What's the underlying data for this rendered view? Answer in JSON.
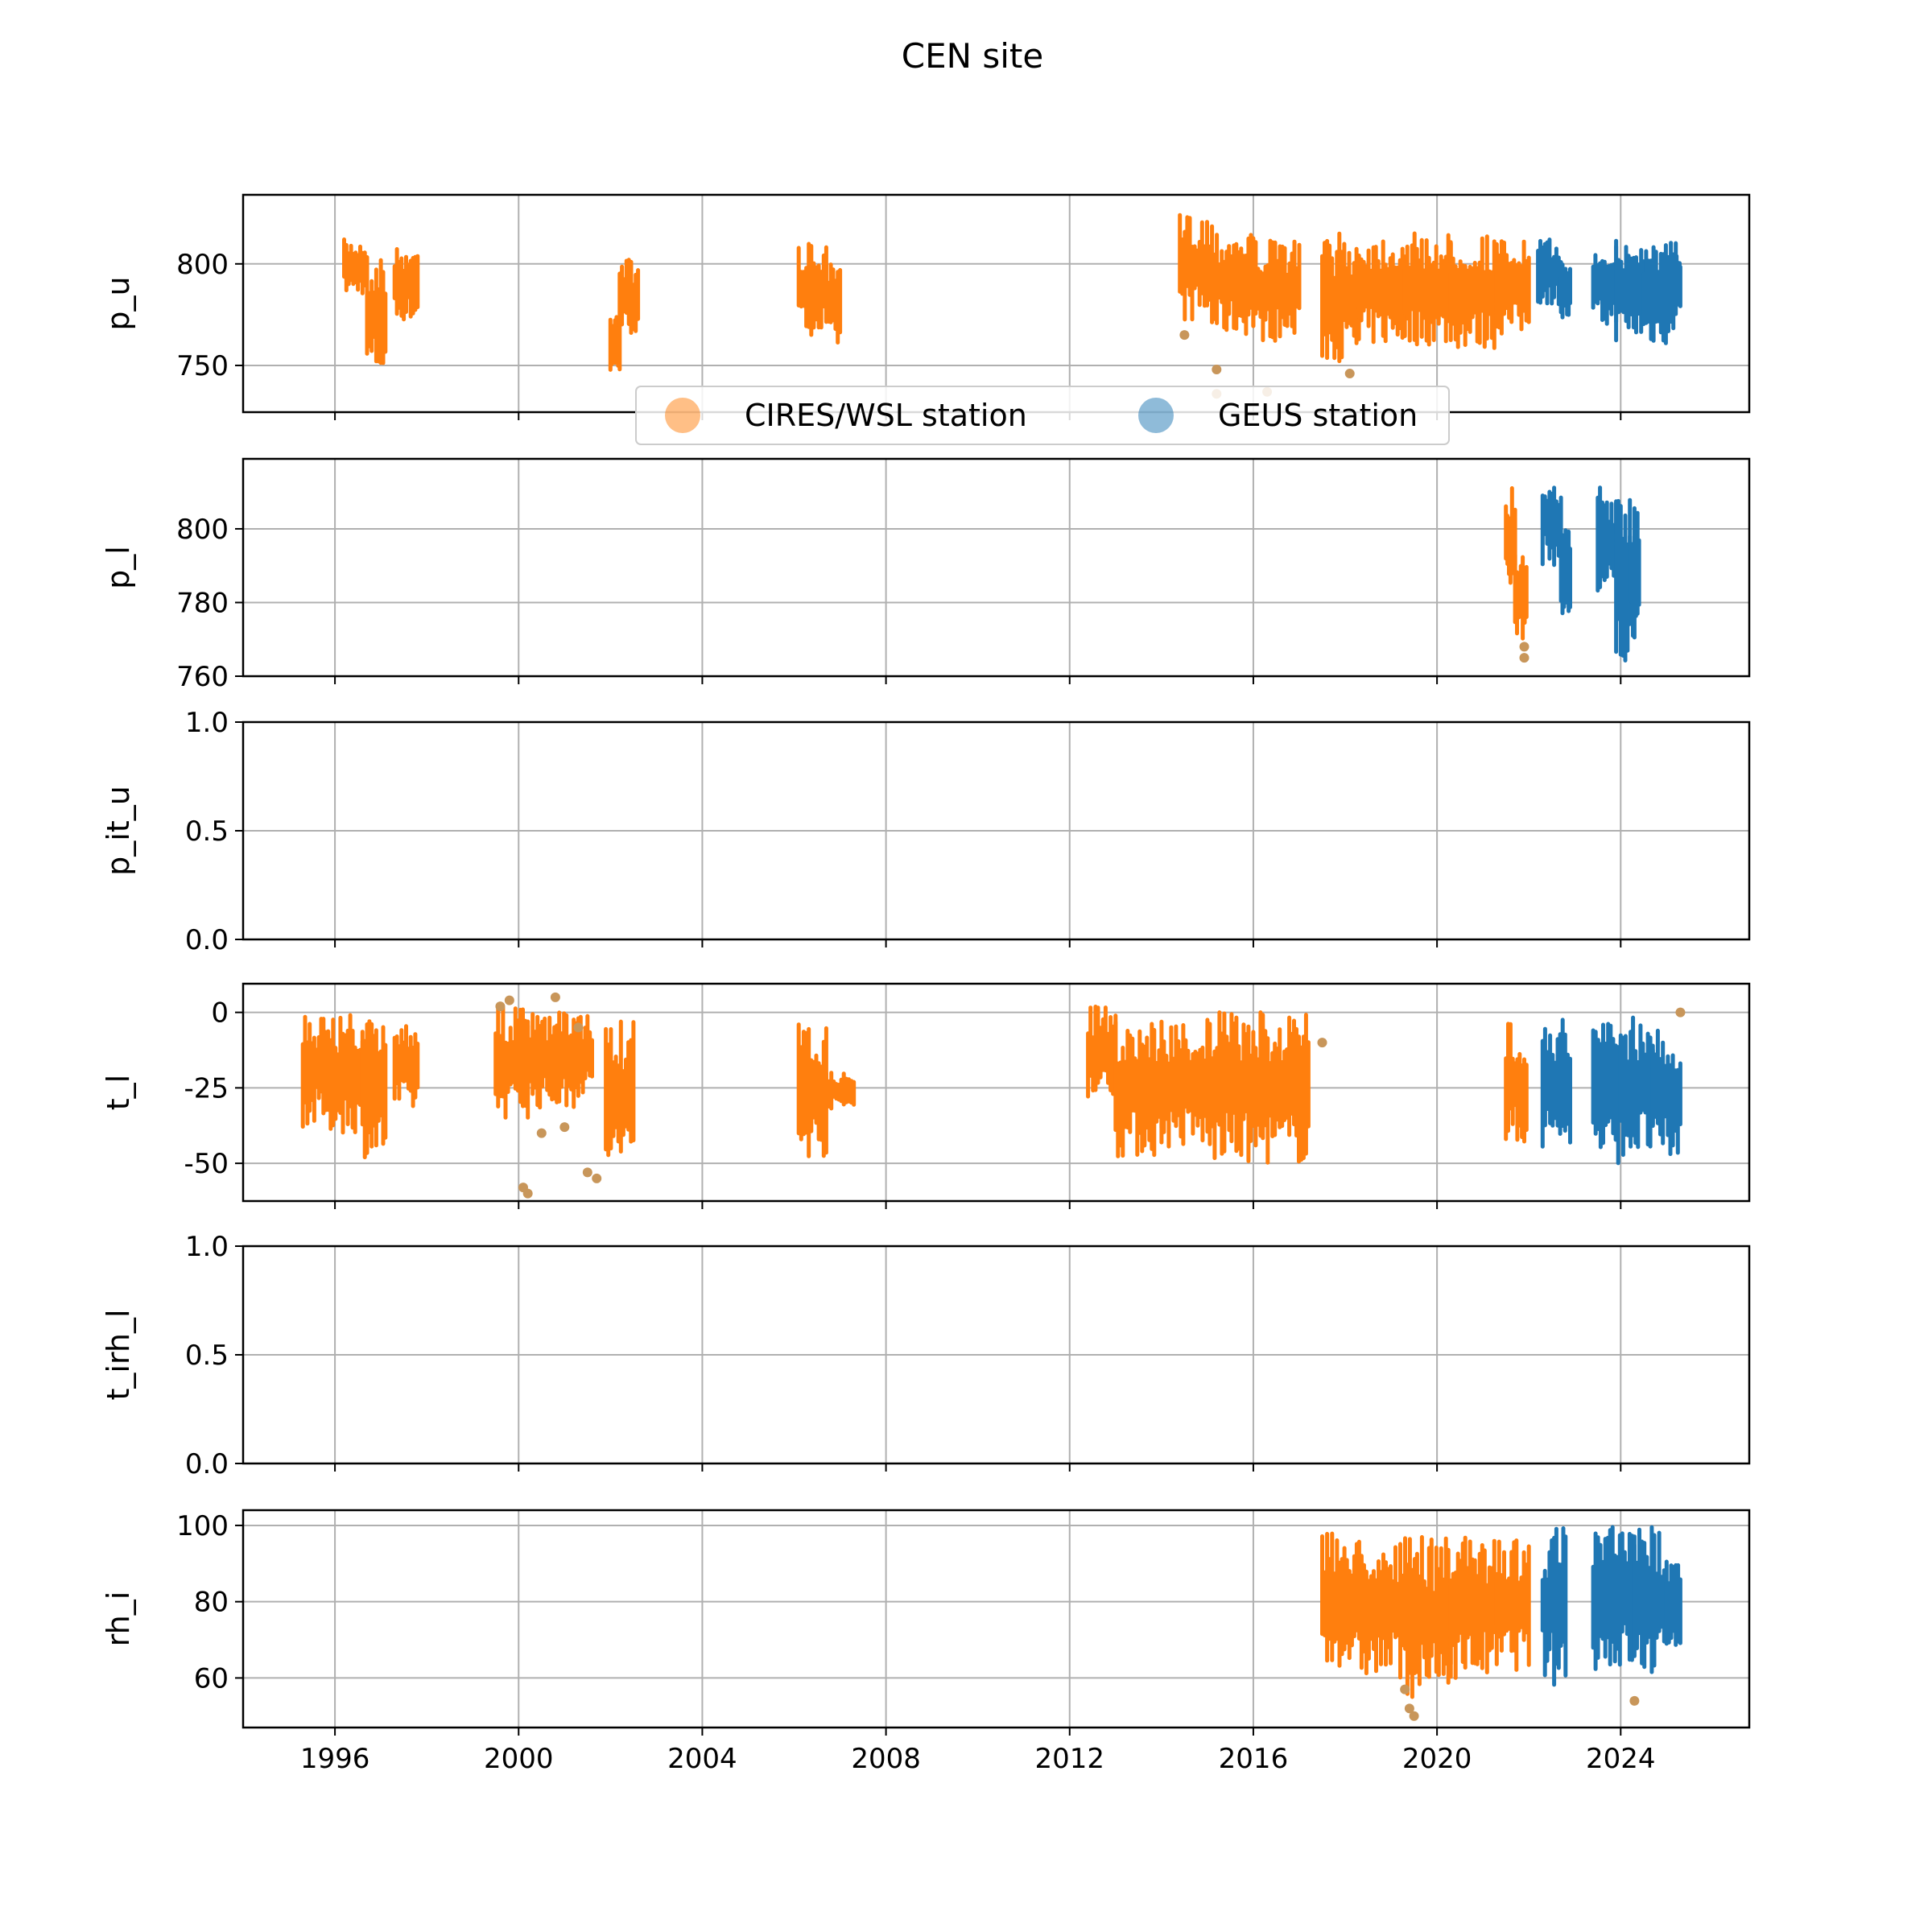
{
  "chart_data": {
    "type": "scatter",
    "title": "CEN site",
    "x_unit": "year",
    "xlim": [
      1994,
      2026.8
    ],
    "x_ticks": [
      1996,
      2000,
      2004,
      2008,
      2012,
      2016,
      2020,
      2024
    ],
    "x_tick_labels": [
      "1996",
      "2000",
      "2004",
      "2008",
      "2012",
      "2016",
      "2020",
      "2024"
    ],
    "grid": true,
    "legend": {
      "placement": "upper-center",
      "entries": [
        {
          "label": "CIRES/WSL station",
          "color": "#ff7f0e"
        },
        {
          "label": "GEUS station",
          "color": "#1f77b4"
        }
      ]
    },
    "colors": {
      "cires": "#ff7f0e",
      "geus": "#1f77b4",
      "outlier": "#c8965a",
      "grid": "#b0b0b0"
    },
    "panels": [
      {
        "ylabel": "p_u",
        "ylim": [
          727,
          834
        ],
        "yticks": [
          750,
          800
        ],
        "series": [
          {
            "name": "CIRES/WSL station",
            "segments": [
              [
                1996.2,
                1996.7,
                785,
                812
              ],
              [
                1996.7,
                1997.1,
                745,
                805
              ],
              [
                1997.3,
                1997.8,
                772,
                808
              ],
              [
                2002.0,
                2002.2,
                745,
                780
              ],
              [
                2002.2,
                2002.6,
                765,
                803
              ],
              [
                2006.1,
                2006.7,
                765,
                810
              ],
              [
                2006.7,
                2007.0,
                758,
                800
              ],
              [
                2014.4,
                2015.1,
                772,
                825
              ],
              [
                2015.1,
                2016.0,
                765,
                818
              ],
              [
                2016.0,
                2017.0,
                762,
                812
              ],
              [
                2017.5,
                2018.3,
                752,
                815
              ],
              [
                2018.3,
                2019.3,
                760,
                815
              ],
              [
                2019.3,
                2020.3,
                760,
                815
              ],
              [
                2020.3,
                2021.3,
                758,
                815
              ],
              [
                2021.3,
                2022.0,
                765,
                812
              ]
            ]
          },
          {
            "name": "GEUS station",
            "segments": [
              [
                2022.2,
                2022.7,
                780,
                812
              ],
              [
                2022.7,
                2022.9,
                772,
                800
              ],
              [
                2023.4,
                2023.9,
                768,
                812
              ],
              [
                2023.9,
                2024.5,
                762,
                812
              ],
              [
                2024.5,
                2025.2,
                760,
                812
              ],
              [
                2025.2,
                2025.3,
                778,
                805
              ]
            ]
          }
        ],
        "outliers": [
          [
            2015.2,
            748
          ],
          [
            2015.2,
            736
          ],
          [
            2016.3,
            737
          ],
          [
            2018.1,
            746
          ],
          [
            2014.5,
            765
          ]
        ]
      },
      {
        "ylabel": "p_l",
        "ylim": [
          760,
          819
        ],
        "yticks": [
          760,
          780,
          800
        ],
        "series": [
          {
            "name": "CIRES/WSL station",
            "segments": [
              [
                2021.5,
                2021.7,
                785,
                812
              ],
              [
                2021.7,
                2021.95,
                770,
                795
              ]
            ]
          },
          {
            "name": "GEUS station",
            "segments": [
              [
                2022.3,
                2022.7,
                790,
                815
              ],
              [
                2022.7,
                2022.9,
                775,
                800
              ],
              [
                2023.5,
                2023.9,
                780,
                812
              ],
              [
                2023.9,
                2024.2,
                762,
                808
              ],
              [
                2024.2,
                2024.4,
                770,
                808
              ]
            ]
          }
        ],
        "outliers": [
          [
            2021.9,
            765
          ],
          [
            2021.9,
            768
          ]
        ]
      },
      {
        "ylabel": "p_it_u",
        "ylim": [
          0,
          1
        ],
        "yticks": [
          0.0,
          0.5,
          1.0
        ],
        "ytick_labels": [
          "0.0",
          "0.5",
          "1.0"
        ],
        "series": []
      },
      {
        "ylabel": "t_l",
        "ylim": [
          -62.5,
          9.5
        ],
        "yticks": [
          -50,
          -25,
          0
        ],
        "series": [
          {
            "name": "CIRES/WSL station",
            "segments": [
              [
                1995.3,
                1995.8,
                -38,
                0
              ],
              [
                1995.8,
                1996.6,
                -40,
                0
              ],
              [
                1996.6,
                1997.1,
                -48,
                -2
              ],
              [
                1997.3,
                1997.8,
                -33,
                -2
              ],
              [
                1999.5,
                2000.2,
                -35,
                2
              ],
              [
                2000.2,
                2001.2,
                -32,
                0
              ],
              [
                2001.2,
                2001.6,
                -28,
                0
              ],
              [
                2001.9,
                2002.5,
                -52,
                -3
              ],
              [
                2006.1,
                2006.7,
                -48,
                -4
              ],
              [
                2006.7,
                2007.3,
                -32,
                -20
              ],
              [
                2012.4,
                2013.0,
                -28,
                2
              ],
              [
                2013.0,
                2014.0,
                -48,
                -2
              ],
              [
                2014.0,
                2015.0,
                -45,
                -3
              ],
              [
                2015.0,
                2016.0,
                -50,
                0
              ],
              [
                2016.0,
                2017.2,
                -50,
                0
              ],
              [
                2021.5,
                2021.95,
                -45,
                -3
              ]
            ]
          },
          {
            "name": "GEUS station",
            "segments": [
              [
                2022.3,
                2022.9,
                -45,
                -2
              ],
              [
                2023.4,
                2024.0,
                -50,
                -2
              ],
              [
                2024.0,
                2024.7,
                -48,
                0
              ],
              [
                2024.7,
                2025.3,
                -50,
                -5
              ]
            ]
          }
        ],
        "outliers": [
          [
            1999.8,
            4
          ],
          [
            1999.6,
            2
          ],
          [
            2000.1,
            -58
          ],
          [
            2000.2,
            -60
          ],
          [
            2001.5,
            -53
          ],
          [
            2001.7,
            -55
          ],
          [
            2001.0,
            -38
          ],
          [
            2000.8,
            5
          ],
          [
            2017.5,
            -10
          ],
          [
            2025.3,
            0
          ],
          [
            2001.3,
            -5
          ],
          [
            2000.5,
            -40
          ]
        ]
      },
      {
        "ylabel": "t_irh_l",
        "ylim": [
          0,
          1
        ],
        "yticks": [
          0.0,
          0.5,
          1.0
        ],
        "ytick_labels": [
          "0.0",
          "0.5",
          "1.0"
        ],
        "series": []
      },
      {
        "ylabel": "rh_i",
        "ylim": [
          47,
          104
        ],
        "yticks": [
          60,
          80,
          100
        ],
        "series": [
          {
            "name": "CIRES/WSL station",
            "segments": [
              [
                2017.5,
                2018.2,
                63,
                98
              ],
              [
                2018.2,
                2019.2,
                60,
                97
              ],
              [
                2019.2,
                2020.3,
                55,
                97
              ],
              [
                2020.3,
                2021.3,
                60,
                97
              ],
              [
                2021.3,
                2022.0,
                62,
                97
              ]
            ]
          },
          {
            "name": "GEUS station",
            "segments": [
              [
                2022.3,
                2022.8,
                58,
                100
              ],
              [
                2023.4,
                2024.3,
                62,
                100
              ],
              [
                2024.3,
                2025.0,
                60,
                100
              ],
              [
                2025.0,
                2025.3,
                68,
                92
              ]
            ]
          }
        ],
        "outliers": [
          [
            2019.5,
            50
          ],
          [
            2019.4,
            52
          ],
          [
            2024.3,
            54
          ],
          [
            2019.3,
            57
          ]
        ]
      }
    ]
  }
}
